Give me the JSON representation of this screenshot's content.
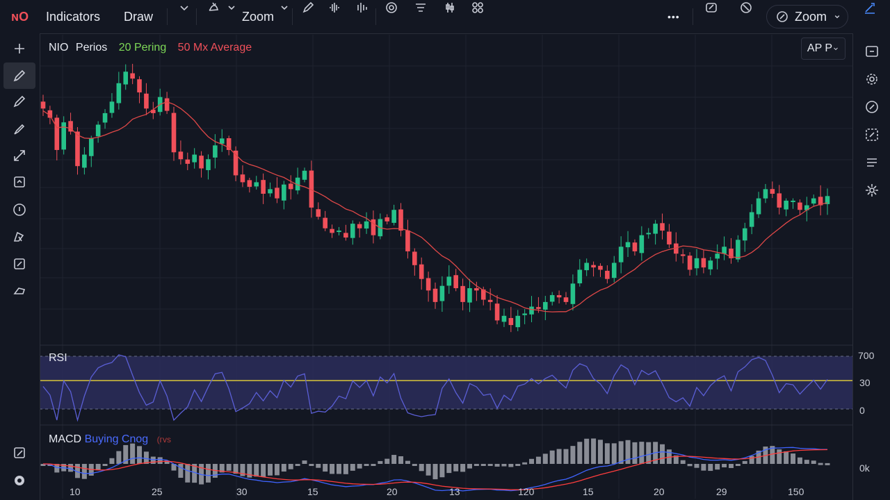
{
  "topbar": {
    "logo": "ɴO",
    "indicators": "Indicators",
    "draw": "Draw",
    "zoom": "Zoom",
    "more": "•••",
    "zoom_pill": "Zoom"
  },
  "legend": {
    "symbol": "NIO",
    "period": "Perios",
    "ma20": "20 Pering",
    "ma50": "50 Mx Average"
  },
  "ap_button": "AP P",
  "rsi": {
    "title": "RSI",
    "ticks": [
      "700",
      "30",
      "0"
    ]
  },
  "macd": {
    "title": "MACD",
    "signal_label": "Buying Cnog",
    "extra_label": "(гvs",
    "tick": "0k"
  },
  "xaxis": [
    "10",
    "25",
    "30",
    "15",
    "20",
    "13",
    "120",
    "15",
    "20",
    "29",
    "150"
  ],
  "colors": {
    "bg": "#131722",
    "up": "#26c28a",
    "down": "#f0505a",
    "ma": "#e04848",
    "rsi_line": "#5b5fd6",
    "rsi_band": "#2b2d5a",
    "rsi_mid": "#d8c53a",
    "macd_line": "#3f64ff",
    "signal_line": "#ff3d3d",
    "hist": "#8a8d96",
    "ma20_text": "#7ed957",
    "ma50_text": "#f0505a",
    "macd_blue_text": "#4a6bff"
  },
  "chart_data": {
    "type": "candlestick",
    "price_close": [
      122,
      118,
      104,
      116,
      112,
      97,
      102,
      109,
      115,
      120,
      125,
      133,
      138,
      135,
      129,
      122,
      120,
      127,
      121,
      103,
      100,
      98,
      102,
      96,
      100,
      106,
      109,
      104,
      93,
      90,
      88,
      90,
      85,
      87,
      83,
      89,
      87,
      92,
      95,
      79,
      75,
      70,
      68,
      69,
      66,
      72,
      70,
      73,
      67,
      74,
      73,
      78,
      69,
      60,
      54,
      48,
      43,
      38,
      45,
      49,
      44,
      38,
      44,
      43,
      39,
      38,
      30,
      32,
      28,
      32,
      33,
      36,
      35,
      38,
      41,
      40,
      38,
      46,
      52,
      55,
      53,
      52,
      48,
      55,
      62,
      64,
      60,
      67,
      68,
      72,
      69,
      63,
      59,
      58,
      52,
      57,
      53,
      56,
      59,
      62,
      57,
      65,
      70,
      77,
      83,
      87,
      85,
      79,
      82,
      82,
      78,
      80,
      83,
      80,
      84
    ]
  }
}
